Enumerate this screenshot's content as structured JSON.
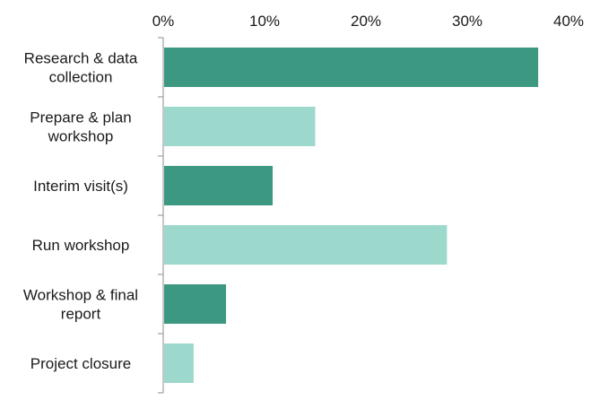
{
  "chart_data": {
    "type": "bar",
    "orientation": "horizontal",
    "x_axis_position": "top",
    "grid": false,
    "legend": "none",
    "xlim": [
      0,
      40
    ],
    "x_ticks": [
      "0%",
      "10%",
      "20%",
      "30%",
      "40%"
    ],
    "x_tick_values": [
      0,
      10,
      20,
      30,
      40
    ],
    "categories": [
      [
        "Research & data",
        "collection"
      ],
      [
        "Prepare & plan",
        "workshop"
      ],
      [
        "Interim visit(s)"
      ],
      [
        "Run workshop"
      ],
      [
        "Workshop & final",
        "report"
      ],
      [
        "Project closure"
      ]
    ],
    "values": [
      37,
      15,
      10.8,
      28,
      6.2,
      3
    ],
    "colors": [
      "#3d9882",
      "#9dd8cd",
      "#3d9882",
      "#9dd8cd",
      "#3d9882",
      "#9dd8cd"
    ],
    "axis_color": "#8c8c8c"
  }
}
